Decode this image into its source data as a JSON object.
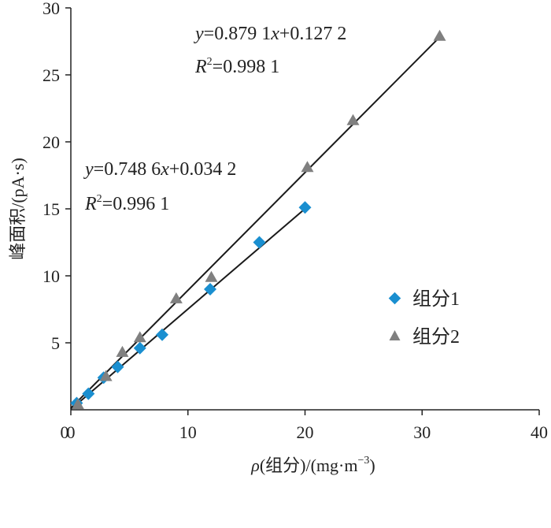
{
  "chart_data": {
    "type": "scatter",
    "xlabel_symbol": "ρ",
    "xlabel_text": "(组分)/(mg·m",
    "xlabel_sup": "−3",
    "xlabel_tail": ")",
    "ylabel": "峰面积/(pA·s)",
    "xlim": [
      0,
      40
    ],
    "ylim": [
      0,
      30
    ],
    "xticks": [
      0,
      10,
      20,
      30,
      40
    ],
    "yticks": [
      5,
      10,
      15,
      20,
      25,
      30
    ],
    "colors": {
      "series1": "#1a8fd0",
      "series2": "#808080",
      "line": "#1a1a1a"
    },
    "series": [
      {
        "name": "组分1",
        "marker": "diamond",
        "x": [
          0.5,
          1.5,
          2.8,
          4.0,
          5.9,
          7.8,
          11.9,
          16.1,
          20.0
        ],
        "y": [
          0.5,
          1.2,
          2.4,
          3.2,
          4.6,
          5.6,
          9.0,
          12.5,
          15.1
        ],
        "fit": {
          "slope": 0.7486,
          "intercept": 0.0342,
          "x_range": [
            0,
            20
          ],
          "eq_y": "y",
          "eq_mid": "=0.748 6",
          "eq_x": "x",
          "eq_tail": "+0.034 2",
          "r2_r": "R",
          "r2_sup": "2",
          "r2_val": "=0.996 1"
        }
      },
      {
        "name": "组分2",
        "marker": "triangle",
        "x": [
          0.6,
          3.0,
          4.4,
          5.9,
          9.0,
          12.0,
          20.2,
          24.1,
          31.5
        ],
        "y": [
          0.4,
          2.5,
          4.3,
          5.4,
          8.3,
          9.9,
          18.1,
          21.6,
          27.9
        ],
        "fit": {
          "slope": 0.8791,
          "intercept": 0.1272,
          "x_range": [
            0,
            31.5
          ],
          "eq_y": "y",
          "eq_mid": "=0.879 1",
          "eq_x": "x",
          "eq_tail": "+0.127 2",
          "r2_r": "R",
          "r2_sup": "2",
          "r2_val": "=0.998 1"
        }
      }
    ]
  }
}
